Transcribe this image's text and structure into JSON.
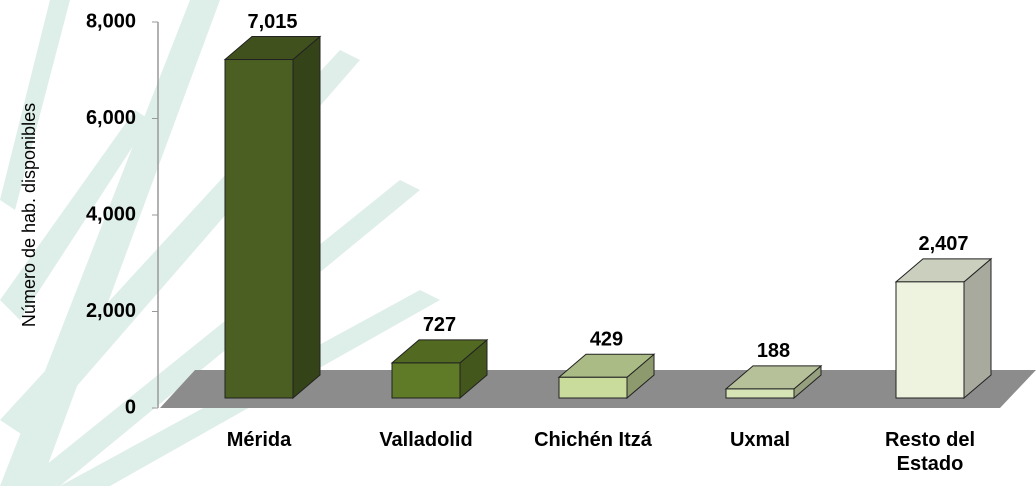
{
  "chart_data": {
    "type": "bar3d",
    "y_label": "Número de hab. disponibles",
    "categories": [
      "Mérida",
      "Valladolid",
      "Chichén Itzá",
      "Uxmal",
      "Resto del Estado"
    ],
    "values": [
      7015,
      727,
      429,
      188,
      2407
    ],
    "value_labels": [
      "7,015",
      "727",
      "429",
      "188",
      "2,407"
    ],
    "colors": [
      "#4b5f22",
      "#5f7b27",
      "#c9dc9c",
      "#d6e3b4",
      "#eef3df"
    ],
    "ylim": [
      0,
      8000
    ],
    "yticks": [
      {
        "value": 0,
        "label": "0"
      },
      {
        "value": 2000,
        "label": "2,000"
      },
      {
        "value": 4000,
        "label": "4,000"
      },
      {
        "value": 6000,
        "label": "6,000"
      },
      {
        "value": 8000,
        "label": "8,000"
      }
    ]
  }
}
